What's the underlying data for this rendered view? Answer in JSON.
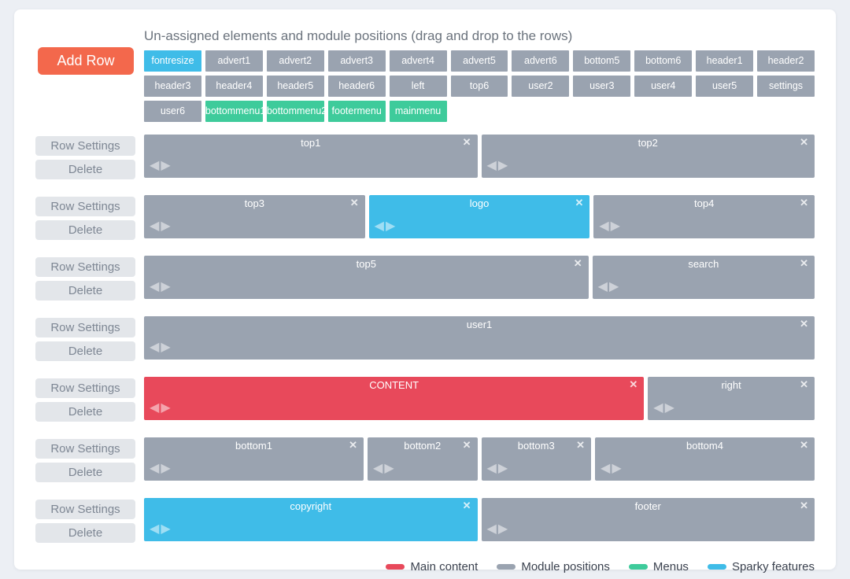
{
  "header": {
    "title": "Un-assigned elements and module positions (drag and drop to the rows)"
  },
  "toolbar": {
    "add_row_label": "Add Row"
  },
  "row_controls": {
    "settings_label": "Row Settings",
    "delete_label": "Delete"
  },
  "icons": {
    "close": "✕",
    "arrow_left": "◀",
    "arrow_right": "▶"
  },
  "colors": {
    "page_background": "#eceff4",
    "card_background": "#ffffff",
    "accent_orange": "#f3684c",
    "control_button_bg": "#e3e6ea",
    "control_button_text": "#7e8794",
    "types": {
      "content": "#e8495b",
      "module": "#9aa3b0",
      "menu": "#3ecb9b",
      "sparky": "#3fbce8"
    }
  },
  "unassigned": {
    "items": [
      {
        "label": "fontresize",
        "type": "sparky"
      },
      {
        "label": "advert1",
        "type": "module"
      },
      {
        "label": "advert2",
        "type": "module"
      },
      {
        "label": "advert3",
        "type": "module"
      },
      {
        "label": "advert4",
        "type": "module"
      },
      {
        "label": "advert5",
        "type": "module"
      },
      {
        "label": "advert6",
        "type": "module"
      },
      {
        "label": "bottom5",
        "type": "module"
      },
      {
        "label": "bottom6",
        "type": "module"
      },
      {
        "label": "header1",
        "type": "module"
      },
      {
        "label": "header2",
        "type": "module"
      },
      {
        "label": "header3",
        "type": "module"
      },
      {
        "label": "header4",
        "type": "module"
      },
      {
        "label": "header5",
        "type": "module"
      },
      {
        "label": "header6",
        "type": "module"
      },
      {
        "label": "left",
        "type": "module"
      },
      {
        "label": "top6",
        "type": "module"
      },
      {
        "label": "user2",
        "type": "module"
      },
      {
        "label": "user3",
        "type": "module"
      },
      {
        "label": "user4",
        "type": "module"
      },
      {
        "label": "user5",
        "type": "module"
      },
      {
        "label": "settings",
        "type": "module"
      },
      {
        "label": "user6",
        "type": "module"
      },
      {
        "label": "bottommenu1",
        "type": "menu"
      },
      {
        "label": "bottommenu2",
        "type": "menu"
      },
      {
        "label": "footermenu",
        "type": "menu"
      },
      {
        "label": "mainmenu",
        "type": "menu"
      }
    ]
  },
  "rows": [
    {
      "blocks": [
        {
          "label": "top1",
          "type": "module",
          "width": 1
        },
        {
          "label": "top2",
          "type": "module",
          "width": 1
        }
      ]
    },
    {
      "blocks": [
        {
          "label": "top3",
          "type": "module",
          "width": 1
        },
        {
          "label": "logo",
          "type": "sparky",
          "width": 1
        },
        {
          "label": "top4",
          "type": "module",
          "width": 1
        }
      ]
    },
    {
      "blocks": [
        {
          "label": "top5",
          "type": "module",
          "width": 2
        },
        {
          "label": "search",
          "type": "module",
          "width": 1
        }
      ]
    },
    {
      "blocks": [
        {
          "label": "user1",
          "type": "module",
          "width": 1
        }
      ]
    },
    {
      "blocks": [
        {
          "label": "CONTENT",
          "type": "content",
          "width": 3
        },
        {
          "label": "right",
          "type": "module",
          "width": 1
        }
      ]
    },
    {
      "blocks": [
        {
          "label": "bottom1",
          "type": "module",
          "width": 2
        },
        {
          "label": "bottom2",
          "type": "module",
          "width": 1
        },
        {
          "label": "bottom3",
          "type": "module",
          "width": 1
        },
        {
          "label": "bottom4",
          "type": "module",
          "width": 2
        }
      ]
    },
    {
      "blocks": [
        {
          "label": "copyright",
          "type": "sparky",
          "width": 1
        },
        {
          "label": "footer",
          "type": "module",
          "width": 1
        }
      ]
    }
  ],
  "legend": {
    "items": [
      {
        "label": "Main content",
        "type": "content"
      },
      {
        "label": "Module positions",
        "type": "module"
      },
      {
        "label": "Menus",
        "type": "menu"
      },
      {
        "label": "Sparky features",
        "type": "sparky"
      }
    ]
  }
}
